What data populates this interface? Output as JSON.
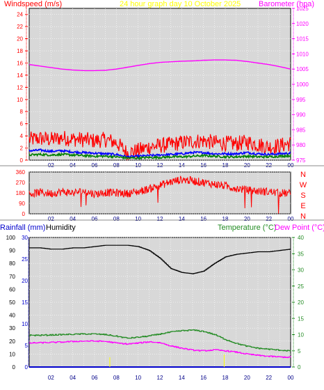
{
  "header": {
    "wind_label": "Windspeed (m/s)",
    "title": "24 hour graph day   10 October 2025",
    "baro_label": "Barometer (hpa)"
  },
  "humidity_header": {
    "rain_label": "Rainfall (mm)",
    "humidity_label": "Humidity",
    "temp_label": "Temperature (°C)",
    "dew_label": "Dew Point (°C)"
  },
  "colors": {
    "plot_bg": "#d8d8d8",
    "wind": "#ff0000",
    "baro": "#ff00ff",
    "gust": "#0000ff",
    "avg": "#008000",
    "humidity": "#000000",
    "temp": "#228b22",
    "dew": "#ff00ff",
    "rain": "#0000cc",
    "title": "#ffff00"
  },
  "chart_data": [
    {
      "type": "line",
      "name": "wind-barometer",
      "x_ticks": [
        "02",
        "04",
        "06",
        "08",
        "10",
        "12",
        "14",
        "16",
        "18",
        "20",
        "22",
        "00"
      ],
      "ylabel_left": "Windspeed (m/s)",
      "ylim_left": [
        0,
        25
      ],
      "y_ticks_left": [
        0,
        2,
        4,
        6,
        8,
        10,
        12,
        14,
        16,
        18,
        20,
        22,
        24
      ],
      "ylabel_right": "Barometer (hpa)",
      "ylim_right": [
        975,
        1025
      ],
      "y_ticks_right": [
        975,
        980,
        985,
        990,
        995,
        1000,
        1005,
        1010,
        1015,
        1020,
        1025
      ],
      "x_hours": [
        0,
        1,
        2,
        3,
        4,
        5,
        6,
        7,
        8,
        9,
        10,
        11,
        12,
        13,
        14,
        15,
        16,
        17,
        18,
        19,
        20,
        21,
        22,
        23,
        24
      ],
      "series": [
        {
          "name": "Barometer (hpa)",
          "axis": "right",
          "values": [
            1006.5,
            1006.0,
            1005.5,
            1005.0,
            1004.7,
            1004.5,
            1004.5,
            1004.6,
            1005.0,
            1005.6,
            1006.2,
            1006.8,
            1007.2,
            1007.4,
            1007.6,
            1007.7,
            1007.9,
            1008.0,
            1008.0,
            1007.9,
            1007.5,
            1007.0,
            1006.5,
            1005.8,
            1005.0
          ]
        },
        {
          "name": "Windspeed (m/s)",
          "axis": "left",
          "values": [
            3.0,
            3.2,
            3.0,
            3.3,
            3.1,
            3.0,
            2.8,
            3.0,
            2.5,
            0.8,
            1.2,
            1.8,
            2.0,
            2.2,
            2.5,
            2.7,
            2.8,
            2.5,
            2.4,
            2.3,
            2.6,
            2.2,
            1.8,
            2.0,
            2.4
          ]
        },
        {
          "name": "Average",
          "axis": "left",
          "values": [
            1.5,
            1.6,
            1.4,
            1.5,
            1.3,
            1.2,
            1.1,
            1.0,
            0.9,
            0.5,
            0.6,
            0.7,
            0.8,
            0.9,
            1.0,
            1.2,
            1.2,
            1.0,
            1.0,
            1.0,
            1.2,
            1.0,
            0.9,
            1.0,
            1.1
          ]
        },
        {
          "name": "Minimum",
          "axis": "left",
          "values": [
            0.8,
            0.9,
            0.8,
            0.9,
            0.8,
            0.7,
            0.6,
            0.6,
            0.5,
            0.3,
            0.3,
            0.4,
            0.4,
            0.5,
            0.5,
            0.6,
            0.7,
            0.6,
            0.5,
            0.5,
            0.6,
            0.5,
            0.5,
            0.6,
            0.7
          ]
        }
      ]
    },
    {
      "type": "line",
      "name": "wind-direction",
      "x_ticks": [
        "02",
        "04",
        "06",
        "08",
        "10",
        "12",
        "14",
        "16",
        "18",
        "20",
        "22",
        "00"
      ],
      "ylim": [
        0,
        360
      ],
      "y_ticks": [
        0,
        90,
        180,
        270,
        360
      ],
      "compass": [
        "N",
        "W",
        "S",
        "E",
        "N"
      ],
      "x_hours": [
        0,
        1,
        2,
        3,
        4,
        5,
        6,
        7,
        8,
        9,
        10,
        11,
        12,
        13,
        14,
        15,
        16,
        17,
        18,
        19,
        20,
        21,
        22,
        23,
        24
      ],
      "values": [
        170,
        185,
        175,
        190,
        180,
        195,
        170,
        185,
        180,
        175,
        190,
        215,
        245,
        275,
        295,
        285,
        270,
        255,
        240,
        220,
        205,
        195,
        190,
        180,
        175
      ]
    },
    {
      "type": "line",
      "name": "humidity-temperature",
      "x_ticks": [
        "02",
        "04",
        "06",
        "08",
        "10",
        "12",
        "14",
        "16",
        "18",
        "20",
        "22",
        "00"
      ],
      "ylim_left": [
        0,
        100
      ],
      "y_ticks_left": [
        0,
        10,
        20,
        30,
        40,
        50,
        60,
        70,
        80,
        90,
        100
      ],
      "ylim_rain": [
        0,
        30
      ],
      "y_ticks_rain": [
        0,
        5,
        10,
        15,
        20,
        25,
        30
      ],
      "ylim_right": [
        0,
        40
      ],
      "y_ticks_right": [
        0,
        5,
        10,
        15,
        20,
        25,
        30,
        35,
        40
      ],
      "x_hours": [
        0,
        1,
        2,
        3,
        4,
        5,
        6,
        7,
        8,
        9,
        10,
        11,
        12,
        13,
        14,
        15,
        16,
        17,
        18,
        19,
        20,
        21,
        22,
        23,
        24
      ],
      "series": [
        {
          "name": "Humidity",
          "axis": "left",
          "values": [
            92,
            92,
            91,
            91,
            92,
            92,
            93,
            94,
            94,
            94,
            93,
            90,
            84,
            76,
            73,
            72,
            74,
            80,
            85,
            87,
            88,
            89,
            89,
            90,
            91
          ]
        },
        {
          "name": "Temperature (°C)",
          "axis": "right",
          "values": [
            9.8,
            9.8,
            9.9,
            10.0,
            10.1,
            10.2,
            10.2,
            10.0,
            9.5,
            8.9,
            9.2,
            9.6,
            10.2,
            10.8,
            11.2,
            11.4,
            11.0,
            10.0,
            8.5,
            7.3,
            6.4,
            5.8,
            5.5,
            5.2,
            5.0
          ]
        },
        {
          "name": "Dew Point (°C)",
          "axis": "right",
          "values": [
            7.4,
            7.5,
            7.6,
            7.7,
            7.9,
            8.0,
            8.0,
            7.9,
            7.4,
            7.1,
            7.4,
            7.8,
            7.5,
            6.5,
            5.8,
            5.2,
            5.0,
            5.3,
            5.0,
            4.6,
            4.0,
            3.6,
            3.3,
            3.1,
            3.0
          ]
        },
        {
          "name": "Rainfall (mm)",
          "axis": "rain",
          "values": [
            0,
            0,
            0,
            0,
            0,
            0,
            0,
            0,
            0,
            0,
            0,
            0,
            0,
            0,
            0,
            0,
            0,
            0,
            0,
            0,
            0,
            0,
            0,
            0,
            0
          ]
        }
      ]
    }
  ]
}
